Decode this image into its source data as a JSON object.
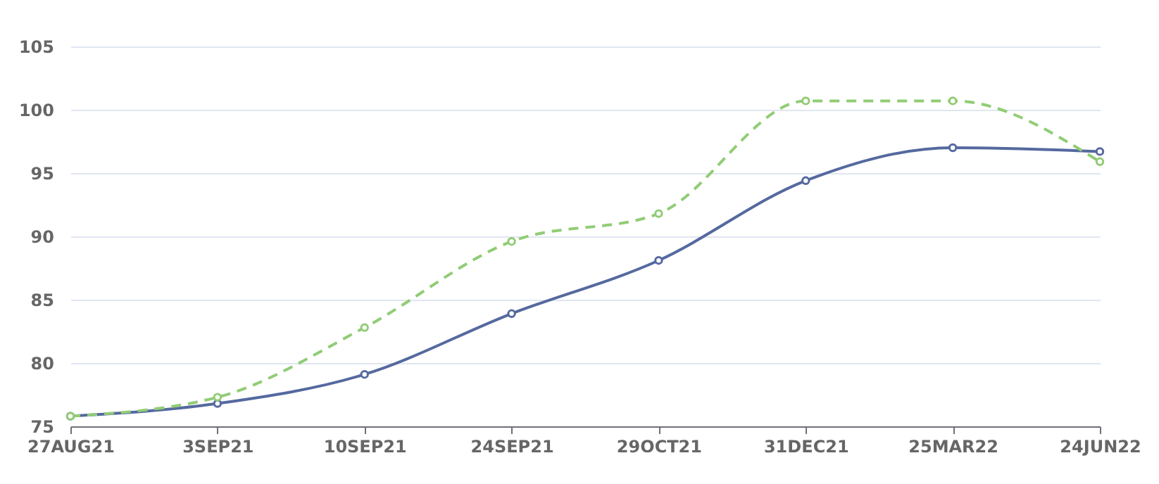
{
  "chart_data": {
    "type": "line",
    "categories": [
      "27AUG21",
      "3SEP21",
      "10SEP21",
      "24SEP21",
      "29OCT21",
      "31DEC21",
      "25MAR22",
      "24JUN22"
    ],
    "series": [
      {
        "color": "#55699f",
        "line_style": "solid",
        "values": [
          75.8,
          76.8,
          79.1,
          83.9,
          88.1,
          94.4,
          97.0,
          96.7
        ]
      },
      {
        "color": "#91cc75",
        "line_style": "dashed",
        "values": [
          75.8,
          77.3,
          82.8,
          89.6,
          91.8,
          100.7,
          100.7,
          95.9
        ]
      }
    ],
    "ylim": [
      75,
      105
    ],
    "yticks": [
      75,
      80,
      85,
      90,
      95,
      100,
      105
    ],
    "grid": "y",
    "marker": "circle"
  }
}
